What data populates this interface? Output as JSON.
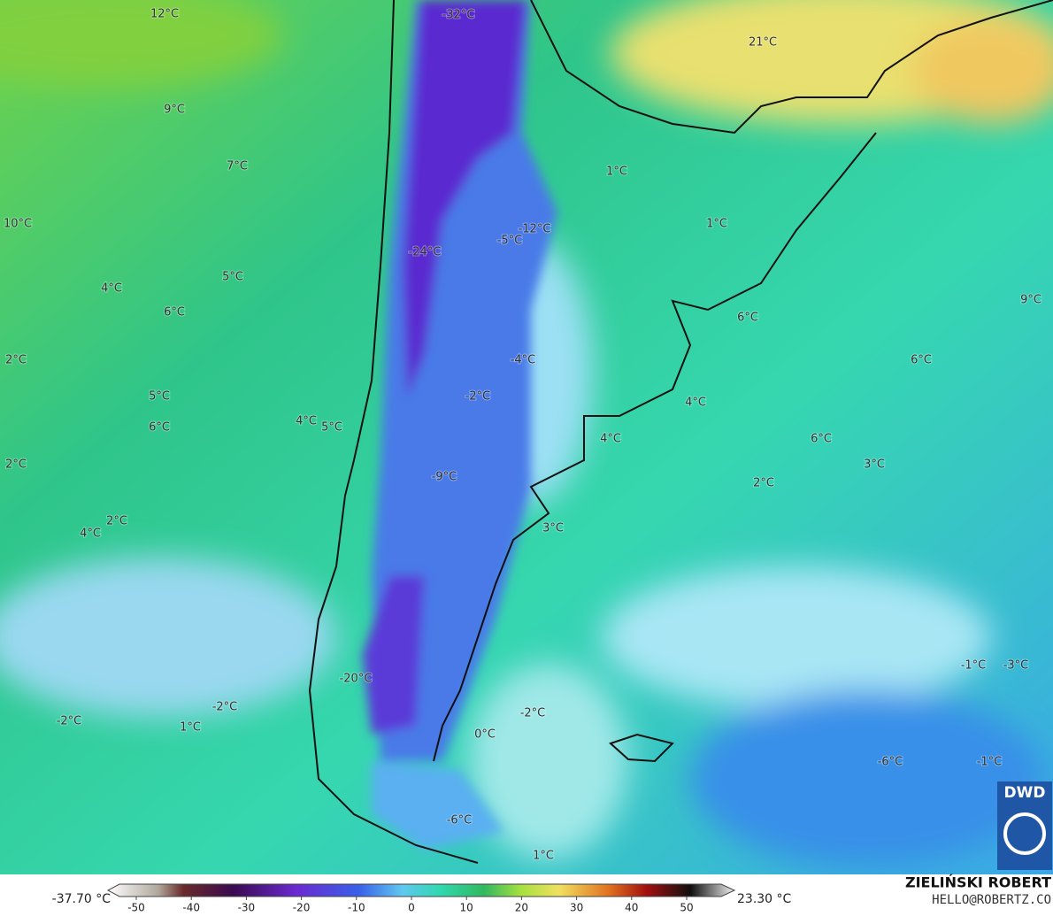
{
  "map": {
    "labels": [
      "12°C",
      "-32°C",
      "21°C",
      "9°C",
      "7°C",
      "1°C",
      "10°C",
      "1°C",
      "-12°C",
      "-5°C",
      "-24°C",
      "5°C",
      "4°C",
      "6°C",
      "6°C",
      "9°C",
      "2°C",
      "-4°C",
      "6°C",
      "5°C",
      "-2°C",
      "4°C",
      "6°C",
      "4°C",
      "5°C",
      "4°C",
      "6°C",
      "2°C",
      "3°C",
      "-9°C",
      "2°C",
      "2°C",
      "4°C",
      "3°C",
      "-1°C",
      "-3°C",
      "-20°C",
      "-2°C",
      "-2°C",
      "-2°C",
      "1°C",
      "0°C",
      "-6°C",
      "-1°C",
      "-6°C",
      "1°C"
    ]
  },
  "colorbar": {
    "min_label": "-37.70 °C",
    "max_label": "23.30 °C",
    "ticks": [
      -50,
      -40,
      -30,
      -20,
      -10,
      0,
      10,
      20,
      30,
      40,
      50
    ]
  },
  "credits": {
    "author": "ZIELIŃSKI ROBERT",
    "contact": "HELLO@ROBERTZ.CO",
    "logo": "DWD"
  }
}
